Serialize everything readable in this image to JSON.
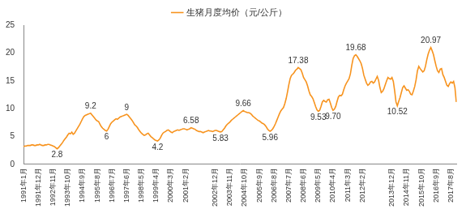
{
  "chart_data": {
    "type": "line",
    "legend": "top",
    "grid": false,
    "ylim": [
      0,
      25
    ],
    "yticks": [
      0,
      5,
      10,
      15,
      20,
      25
    ],
    "categories": [
      "1991年1月",
      null,
      null,
      null,
      null,
      null,
      null,
      null,
      null,
      null,
      null,
      "1991年12月",
      null,
      null,
      null,
      null,
      null,
      null,
      null,
      null,
      null,
      null,
      "1992年11月",
      null,
      null,
      null,
      null,
      null,
      null,
      null,
      null,
      null,
      null,
      "1993年10月",
      null,
      null,
      null,
      null,
      null,
      null,
      null,
      null,
      null,
      null,
      "1994年9月",
      null,
      null,
      null,
      null,
      null,
      null,
      null,
      null,
      null,
      null,
      "1995年8月",
      null,
      null,
      null,
      null,
      null,
      null,
      null,
      null,
      null,
      null,
      "1996年7月",
      null,
      null,
      null,
      null,
      null,
      null,
      null,
      null,
      null,
      null,
      "1997年6月",
      null,
      null,
      null,
      null,
      null,
      null,
      null,
      null,
      null,
      null,
      "1998年5月",
      null,
      null,
      null,
      null,
      null,
      null,
      null,
      null,
      null,
      null,
      "1999年4月",
      null,
      null,
      null,
      null,
      null,
      null,
      null,
      null,
      null,
      null,
      "2000年3月",
      null,
      null,
      null,
      null,
      null,
      null,
      null,
      null,
      null,
      null,
      "2001年2月",
      null,
      null,
      null,
      null,
      null,
      null,
      null,
      null,
      null,
      null,
      null,
      null,
      null,
      null,
      null,
      null,
      null,
      null,
      null,
      null,
      null,
      "2002年12月",
      null,
      null,
      null,
      null,
      null,
      null,
      null,
      null,
      null,
      null,
      "2003年11月",
      null,
      null,
      null,
      null,
      null,
      null,
      null,
      null,
      null,
      null,
      "2004年10月",
      null,
      null,
      null,
      null,
      null,
      null,
      null,
      null,
      null,
      null,
      "2005年9月",
      null,
      null,
      null,
      null,
      null,
      null,
      null,
      null,
      null,
      null,
      "2006年8月",
      null,
      null,
      null,
      null,
      null,
      null,
      null,
      null,
      null,
      null,
      "2007年7月",
      null,
      null,
      null,
      null,
      null,
      null,
      null,
      null,
      null,
      null,
      "2008年6月",
      null,
      null,
      null,
      null,
      null,
      null,
      null,
      null,
      null,
      null,
      "2009年5月",
      null,
      null,
      null,
      null,
      null,
      null,
      null,
      null,
      null,
      null,
      "2010年4月",
      null,
      null,
      null,
      null,
      null,
      null,
      null,
      null,
      null,
      null,
      "2011年3月",
      null,
      null,
      null,
      null,
      null,
      null,
      null,
      null,
      null,
      null,
      "2012年2月",
      null,
      null,
      null,
      null,
      null,
      null,
      null,
      null,
      null,
      null,
      null,
      null,
      null,
      null,
      null,
      null,
      null,
      null,
      null,
      null,
      null,
      "2013年12月",
      null,
      null,
      null,
      null,
      null,
      null,
      null,
      null,
      null,
      null,
      "2014年11月",
      null,
      null,
      null,
      null,
      null,
      null,
      null,
      null,
      null,
      null,
      "2015年10月",
      null,
      null,
      null,
      null,
      null,
      null,
      null,
      null,
      null,
      null,
      "2016年9月",
      null,
      null,
      null,
      null,
      null,
      null,
      null,
      null,
      null,
      null,
      "2017年8月",
      null,
      null,
      null,
      null
    ],
    "series": [
      {
        "name": "生猪月度均价（元/公斤）",
        "color": "#f7931e",
        "values": [
          3.2,
          3.3,
          3.3,
          3.4,
          3.4,
          3.4,
          3.5,
          3.5,
          3.4,
          3.4,
          3.5,
          3.5,
          3.6,
          3.5,
          3.4,
          3.4,
          3.5,
          3.5,
          3.6,
          3.6,
          3.5,
          3.4,
          3.3,
          3.2,
          3.0,
          2.8,
          3.0,
          3.3,
          3.6,
          3.9,
          4.3,
          4.6,
          4.9,
          5.3,
          5.6,
          5.5,
          5.8,
          5.4,
          5.6,
          6.0,
          6.4,
          6.8,
          7.2,
          7.7,
          8.2,
          8.6,
          8.8,
          8.9,
          9.0,
          9.1,
          9.2,
          8.9,
          8.6,
          8.3,
          8.0,
          7.8,
          7.7,
          7.2,
          6.8,
          6.5,
          6.3,
          6.1,
          6,
          6.3,
          6.8,
          7.3,
          7.6,
          7.8,
          8.0,
          8.2,
          8.1,
          8.3,
          8.5,
          8.6,
          8.7,
          8.8,
          8.9,
          9,
          8.8,
          8.5,
          8.2,
          7.9,
          7.5,
          7.1,
          6.9,
          6.6,
          6.2,
          5.9,
          5.6,
          5.4,
          5.2,
          5.3,
          5.5,
          5.6,
          5.3,
          5.0,
          4.8,
          4.6,
          4.4,
          4.3,
          4.2,
          4.4,
          4.7,
          5.2,
          5.6,
          5.8,
          5.9,
          6.1,
          6.2,
          6.0,
          5.8,
          5.7,
          5.9,
          6.0,
          6.1,
          6.2,
          6.1,
          6.2,
          6.3,
          6.4,
          6.4,
          6.3,
          6.2,
          6.3,
          6.4,
          6.58,
          6.5,
          6.4,
          6.3,
          6.1,
          6.0,
          5.9,
          5.9,
          5.8,
          5.7,
          5.8,
          5.9,
          6.0,
          6.1,
          6.0,
          6.0,
          5.9,
          6.0,
          6.1,
          6.1,
          6.0,
          5.9,
          5.83,
          5.9,
          6.2,
          6.5,
          6.9,
          7.2,
          7.4,
          7.6,
          7.9,
          8.1,
          8.3,
          8.5,
          8.7,
          8.9,
          9.1,
          9.3,
          9.5,
          9.66,
          9.5,
          9.4,
          9.3,
          9.3,
          9.2,
          9.0,
          8.7,
          8.5,
          8.3,
          8.1,
          7.9,
          7.8,
          7.6,
          7.4,
          7.3,
          7.1,
          6.8,
          6.4,
          6.1,
          5.96,
          6.1,
          6.4,
          6.8,
          7.3,
          7.9,
          8.5,
          9.1,
          9.6,
          9.9,
          10.2,
          10.9,
          11.8,
          13.0,
          14.3,
          15.4,
          16.0,
          16.2,
          16.5,
          16.9,
          17.1,
          17.38,
          17.2,
          17.0,
          16.4,
          15.6,
          15.2,
          14.8,
          14.1,
          13.2,
          12.5,
          12.2,
          11.8,
          11.1,
          10.4,
          9.8,
          9.53,
          9.7,
          10.4,
          11.2,
          11.5,
          11.3,
          11.2,
          11.6,
          11.7,
          11.0,
          10.2,
          9.7,
          9.9,
          10.4,
          11.3,
          12.1,
          12.4,
          12.3,
          12.6,
          13.4,
          14.1,
          14.6,
          15.0,
          15.4,
          16.3,
          17.8,
          19.0,
          19.5,
          19.68,
          19.4,
          19.0,
          18.6,
          18.1,
          17.2,
          16.0,
          15.3,
          14.6,
          14.2,
          14.4,
          14.8,
          14.9,
          14.6,
          14.8,
          15.3,
          15.8,
          15.1,
          13.8,
          12.9,
          13.1,
          13.6,
          14.3,
          15.0,
          15.6,
          15.4,
          15.3,
          15.6,
          14.9,
          13.2,
          11.2,
          10.52,
          11.3,
          12.0,
          12.9,
          13.8,
          14.1,
          13.7,
          13.3,
          13.4,
          13.1,
          12.6,
          12.5,
          13.2,
          14.0,
          15.2,
          16.8,
          17.6,
          17.2,
          16.9,
          16.6,
          16.8,
          17.6,
          18.8,
          19.8,
          20.5,
          20.97,
          20.4,
          19.7,
          18.6,
          17.6,
          16.8,
          16.5,
          17.1,
          17.2,
          16.1,
          15.6,
          14.9,
          14.2,
          14.0,
          14.5,
          14.8,
          14.6,
          14.9,
          13.8,
          11.2
        ],
        "value_labels": [
          null,
          null,
          null,
          null,
          null,
          null,
          null,
          null,
          null,
          null,
          null,
          null,
          null,
          null,
          null,
          null,
          null,
          null,
          null,
          null,
          null,
          null,
          null,
          null,
          null,
          "2.8",
          null,
          null,
          null,
          null,
          null,
          null,
          null,
          null,
          null,
          null,
          null,
          null,
          null,
          null,
          null,
          null,
          null,
          null,
          null,
          null,
          null,
          null,
          null,
          null,
          "9.2",
          null,
          null,
          null,
          null,
          null,
          null,
          null,
          null,
          null,
          null,
          null,
          "6",
          null,
          null,
          null,
          null,
          null,
          null,
          null,
          null,
          null,
          null,
          null,
          null,
          null,
          null,
          "9",
          null,
          null,
          null,
          null,
          null,
          null,
          null,
          null,
          null,
          null,
          null,
          null,
          null,
          null,
          null,
          null,
          null,
          null,
          null,
          null,
          null,
          null,
          "4.2",
          null,
          null,
          null,
          null,
          null,
          null,
          null,
          null,
          null,
          null,
          null,
          null,
          null,
          null,
          null,
          null,
          null,
          null,
          null,
          null,
          null,
          null,
          null,
          null,
          "6.58",
          null,
          null,
          null,
          null,
          null,
          null,
          null,
          null,
          null,
          null,
          null,
          null,
          null,
          null,
          null,
          null,
          null,
          null,
          null,
          null,
          null,
          "5.83",
          null,
          null,
          null,
          null,
          null,
          null,
          null,
          null,
          null,
          null,
          null,
          null,
          null,
          null,
          null,
          null,
          "9.66",
          null,
          null,
          null,
          null,
          null,
          null,
          null,
          null,
          null,
          null,
          null,
          null,
          null,
          null,
          null,
          null,
          null,
          null,
          null,
          "5.96",
          null,
          null,
          null,
          null,
          null,
          null,
          null,
          null,
          null,
          null,
          null,
          null,
          null,
          null,
          null,
          null,
          null,
          null,
          null,
          null,
          "17.38",
          null,
          null,
          null,
          null,
          null,
          null,
          null,
          null,
          null,
          null,
          null,
          null,
          null,
          null,
          "9.53",
          null,
          null,
          null,
          null,
          null,
          null,
          null,
          null,
          null,
          null,
          "9.70",
          null,
          null,
          null,
          null,
          null,
          null,
          null,
          null,
          null,
          null,
          null,
          null,
          null,
          null,
          null,
          null,
          "19.68",
          null,
          null,
          null,
          null,
          null,
          null,
          null,
          null,
          null,
          null,
          null,
          null,
          null,
          null,
          null,
          null,
          null,
          null,
          null,
          null,
          null,
          null,
          null,
          null,
          null,
          null,
          null,
          null,
          null,
          null,
          "10.52",
          null,
          null,
          null,
          null,
          null,
          null,
          null,
          null,
          null,
          null,
          null,
          null,
          null,
          null,
          null,
          null,
          null,
          null,
          null,
          null,
          null,
          null,
          null,
          null,
          "20.97",
          null,
          null,
          null,
          null,
          null,
          null,
          null,
          null,
          null,
          null,
          null,
          null,
          null,
          null,
          null,
          null,
          null,
          null,
          null
        ]
      }
    ]
  }
}
